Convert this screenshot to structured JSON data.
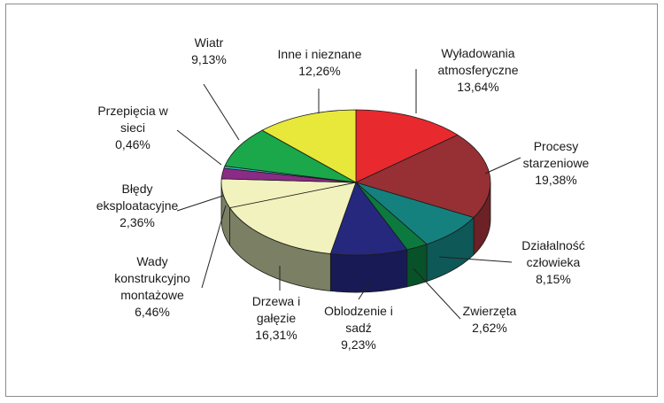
{
  "chart_data": {
    "type": "pie",
    "title": "",
    "slices": [
      {
        "lines": [
          "Wyładowania",
          "atmosferyczne"
        ],
        "value_label": "13,64%",
        "value": 13.64,
        "color": "#e8292e",
        "side": "#a31f22"
      },
      {
        "lines": [
          "Procesy",
          "starzeniowe"
        ],
        "value_label": "19,38%",
        "value": 19.38,
        "color": "#963034",
        "side": "#6b2125"
      },
      {
        "lines": [
          "Działalność",
          "człowieka"
        ],
        "value_label": "8,15%",
        "value": 8.15,
        "color": "#15817f",
        "side": "#0e5857"
      },
      {
        "lines": [
          "Zwierzęta"
        ],
        "value_label": "2,62%",
        "value": 2.62,
        "color": "#0c7a3e",
        "side": "#085229"
      },
      {
        "lines": [
          "Oblodzenie i",
          "sadź"
        ],
        "value_label": "9,23%",
        "value": 9.23,
        "color": "#25287d",
        "side": "#181a55"
      },
      {
        "lines": [
          "Drzewa i",
          "gałęzie"
        ],
        "value_label": "16,31%",
        "value": 16.31,
        "color": "#f1f2bd",
        "side": "#7b8064"
      },
      {
        "lines": [
          "Wady",
          "konstrukcyjno",
          "montażowe"
        ],
        "value_label": "6,46%",
        "value": 6.46,
        "color": "#f1f2bd",
        "side": "#7b8064"
      },
      {
        "lines": [
          "Błędy",
          "eksploatacyjne"
        ],
        "value_label": "2,36%",
        "value": 2.36,
        "color": "#8a2b86",
        "side": "#5f1d5c"
      },
      {
        "lines": [
          "Przepięcia w",
          "sieci"
        ],
        "value_label": "0,46%",
        "value": 0.46,
        "color": "#2ec4c8",
        "side": "#1e8588"
      },
      {
        "lines": [
          "Wiatr"
        ],
        "value_label": "9,13%",
        "value": 9.13,
        "color": "#1aa84a",
        "side": "#127232"
      },
      {
        "lines": [
          "Inne i nieznane"
        ],
        "value_label": "12,26%",
        "value": 12.26,
        "color": "#e8e83a",
        "side": "#9c9c26"
      }
    ]
  }
}
